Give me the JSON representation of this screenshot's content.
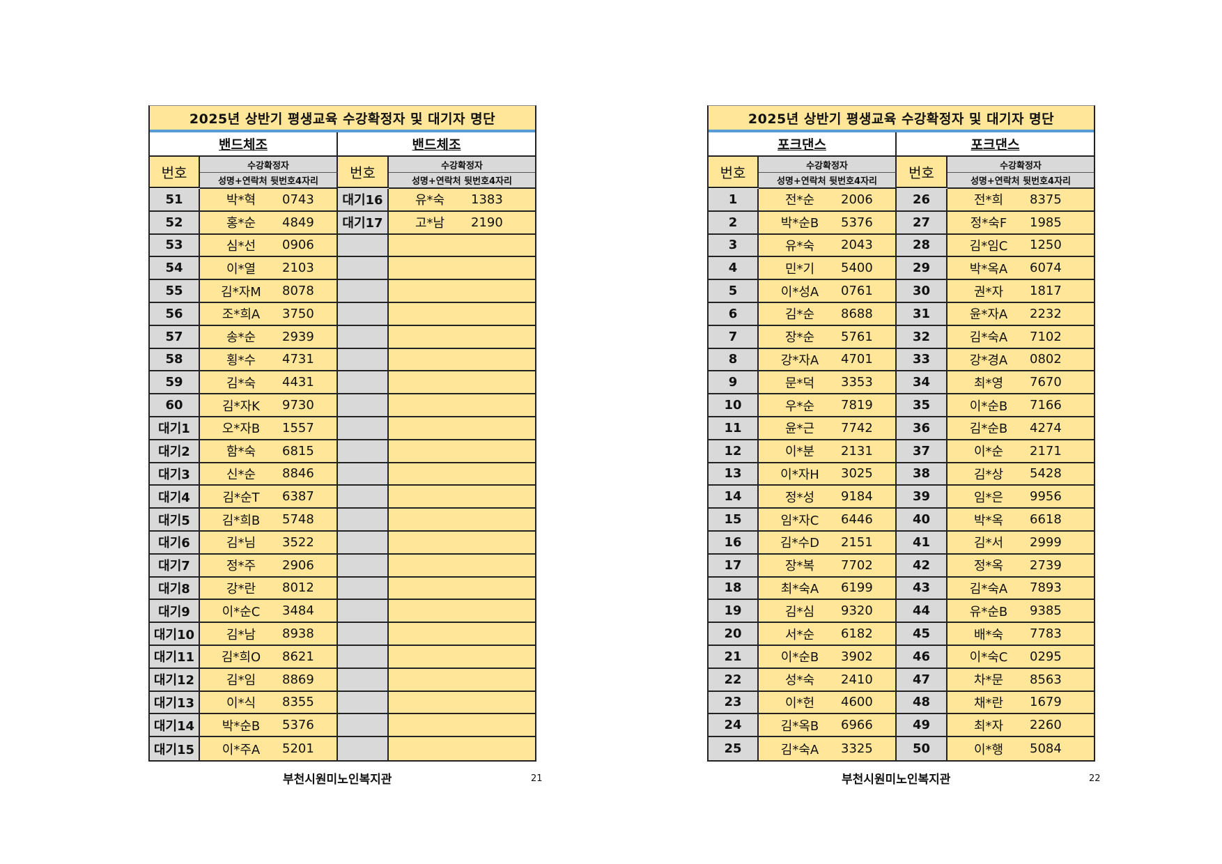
{
  "colors": {
    "header_yellow": "#FFE699",
    "number_gray": "#D9D9D9",
    "title_rule": "#5B9BD5"
  },
  "pages": [
    {
      "title": "2025년 상반기 평생교육 수강확정자 및 대기자 명단",
      "footer": "부천시원미노인복지관",
      "page_number": "21",
      "columns": [
        {
          "heading": "밴드체조",
          "no_label": "번호",
          "group_label": "수강확정자",
          "col_label": "성명+연락처 뒷번호4자리",
          "rows": [
            {
              "no": "51",
              "name": "박*혁",
              "phone": "0743"
            },
            {
              "no": "52",
              "name": "홍*순",
              "phone": "4849"
            },
            {
              "no": "53",
              "name": "심*선",
              "phone": "0906"
            },
            {
              "no": "54",
              "name": "이*열",
              "phone": "2103"
            },
            {
              "no": "55",
              "name": "김*자M",
              "phone": "8078"
            },
            {
              "no": "56",
              "name": "조*희A",
              "phone": "3750"
            },
            {
              "no": "57",
              "name": "송*순",
              "phone": "2939"
            },
            {
              "no": "58",
              "name": "횡*수",
              "phone": "4731"
            },
            {
              "no": "59",
              "name": "김*숙",
              "phone": "4431"
            },
            {
              "no": "60",
              "name": "김*자K",
              "phone": "9730"
            },
            {
              "no": "대기1",
              "name": "오*자B",
              "phone": "1557"
            },
            {
              "no": "대기2",
              "name": "함*숙",
              "phone": "6815"
            },
            {
              "no": "대기3",
              "name": "신*순",
              "phone": "8846"
            },
            {
              "no": "대기4",
              "name": "김*순T",
              "phone": "6387"
            },
            {
              "no": "대기5",
              "name": "김*희B",
              "phone": "5748"
            },
            {
              "no": "대기6",
              "name": "김*님",
              "phone": "3522"
            },
            {
              "no": "대기7",
              "name": "정*주",
              "phone": "2906"
            },
            {
              "no": "대기8",
              "name": "강*란",
              "phone": "8012"
            },
            {
              "no": "대기9",
              "name": "이*순C",
              "phone": "3484"
            },
            {
              "no": "대기10",
              "name": "김*남",
              "phone": "8938"
            },
            {
              "no": "대기11",
              "name": "김*희O",
              "phone": "8621"
            },
            {
              "no": "대기12",
              "name": "김*임",
              "phone": "8869"
            },
            {
              "no": "대기13",
              "name": "이*식",
              "phone": "8355"
            },
            {
              "no": "대기14",
              "name": "박*순B",
              "phone": "5376"
            },
            {
              "no": "대기15",
              "name": "이*주A",
              "phone": "5201"
            }
          ]
        },
        {
          "heading": "밴드체조",
          "no_label": "번호",
          "group_label": "수강확정자",
          "col_label": "성명+연락처 뒷번호4자리",
          "rows": [
            {
              "no": "대기16",
              "name": "유*숙",
              "phone": "1383"
            },
            {
              "no": "대기17",
              "name": "고*남",
              "phone": "2190"
            },
            {
              "no": "",
              "name": "",
              "phone": ""
            },
            {
              "no": "",
              "name": "",
              "phone": ""
            },
            {
              "no": "",
              "name": "",
              "phone": ""
            },
            {
              "no": "",
              "name": "",
              "phone": ""
            },
            {
              "no": "",
              "name": "",
              "phone": ""
            },
            {
              "no": "",
              "name": "",
              "phone": ""
            },
            {
              "no": "",
              "name": "",
              "phone": ""
            },
            {
              "no": "",
              "name": "",
              "phone": ""
            },
            {
              "no": "",
              "name": "",
              "phone": ""
            },
            {
              "no": "",
              "name": "",
              "phone": ""
            },
            {
              "no": "",
              "name": "",
              "phone": ""
            },
            {
              "no": "",
              "name": "",
              "phone": ""
            },
            {
              "no": "",
              "name": "",
              "phone": ""
            },
            {
              "no": "",
              "name": "",
              "phone": ""
            },
            {
              "no": "",
              "name": "",
              "phone": ""
            },
            {
              "no": "",
              "name": "",
              "phone": ""
            },
            {
              "no": "",
              "name": "",
              "phone": ""
            },
            {
              "no": "",
              "name": "",
              "phone": ""
            },
            {
              "no": "",
              "name": "",
              "phone": ""
            },
            {
              "no": "",
              "name": "",
              "phone": ""
            },
            {
              "no": "",
              "name": "",
              "phone": ""
            },
            {
              "no": "",
              "name": "",
              "phone": ""
            },
            {
              "no": "",
              "name": "",
              "phone": ""
            }
          ]
        }
      ]
    },
    {
      "title": "2025년 상반기 평생교육 수강확정자 및 대기자 명단",
      "footer": "부천시원미노인복지관",
      "page_number": "22",
      "columns": [
        {
          "heading": "포크댄스",
          "no_label": "번호",
          "group_label": "수강확정자",
          "col_label": "성명+연락처 뒷번호4자리",
          "rows": [
            {
              "no": "1",
              "name": "전*순",
              "phone": "2006"
            },
            {
              "no": "2",
              "name": "박*순B",
              "phone": "5376"
            },
            {
              "no": "3",
              "name": "유*숙",
              "phone": "2043"
            },
            {
              "no": "4",
              "name": "민*기",
              "phone": "5400"
            },
            {
              "no": "5",
              "name": "이*성A",
              "phone": "0761"
            },
            {
              "no": "6",
              "name": "김*순",
              "phone": "8688"
            },
            {
              "no": "7",
              "name": "장*순",
              "phone": "5761"
            },
            {
              "no": "8",
              "name": "강*자A",
              "phone": "4701"
            },
            {
              "no": "9",
              "name": "문*덕",
              "phone": "3353"
            },
            {
              "no": "10",
              "name": "우*순",
              "phone": "7819"
            },
            {
              "no": "11",
              "name": "윤*근",
              "phone": "7742"
            },
            {
              "no": "12",
              "name": "이*분",
              "phone": "2131"
            },
            {
              "no": "13",
              "name": "이*자H",
              "phone": "3025"
            },
            {
              "no": "14",
              "name": "정*성",
              "phone": "9184"
            },
            {
              "no": "15",
              "name": "임*자C",
              "phone": "6446"
            },
            {
              "no": "16",
              "name": "김*수D",
              "phone": "2151"
            },
            {
              "no": "17",
              "name": "장*복",
              "phone": "7702"
            },
            {
              "no": "18",
              "name": "최*숙A",
              "phone": "6199"
            },
            {
              "no": "19",
              "name": "김*심",
              "phone": "9320"
            },
            {
              "no": "20",
              "name": "서*순",
              "phone": "6182"
            },
            {
              "no": "21",
              "name": "이*순B",
              "phone": "3902"
            },
            {
              "no": "22",
              "name": "성*숙",
              "phone": "2410"
            },
            {
              "no": "23",
              "name": "이*헌",
              "phone": "4600"
            },
            {
              "no": "24",
              "name": "김*옥B",
              "phone": "6966"
            },
            {
              "no": "25",
              "name": "김*숙A",
              "phone": "3325"
            }
          ]
        },
        {
          "heading": "포크댄스",
          "no_label": "번호",
          "group_label": "수강확정자",
          "col_label": "성명+연락처 뒷번호4자리",
          "rows": [
            {
              "no": "26",
              "name": "전*희",
              "phone": "8375"
            },
            {
              "no": "27",
              "name": "정*숙F",
              "phone": "1985"
            },
            {
              "no": "28",
              "name": "김*임C",
              "phone": "1250"
            },
            {
              "no": "29",
              "name": "박*옥A",
              "phone": "6074"
            },
            {
              "no": "30",
              "name": "권*자",
              "phone": "1817"
            },
            {
              "no": "31",
              "name": "윤*자A",
              "phone": "2232"
            },
            {
              "no": "32",
              "name": "김*숙A",
              "phone": "7102"
            },
            {
              "no": "33",
              "name": "강*경A",
              "phone": "0802"
            },
            {
              "no": "34",
              "name": "최*영",
              "phone": "7670"
            },
            {
              "no": "35",
              "name": "이*순B",
              "phone": "7166"
            },
            {
              "no": "36",
              "name": "김*순B",
              "phone": "4274"
            },
            {
              "no": "37",
              "name": "이*순",
              "phone": "2171"
            },
            {
              "no": "38",
              "name": "김*상",
              "phone": "5428"
            },
            {
              "no": "39",
              "name": "임*은",
              "phone": "9956"
            },
            {
              "no": "40",
              "name": "박*옥",
              "phone": "6618"
            },
            {
              "no": "41",
              "name": "김*서",
              "phone": "2999"
            },
            {
              "no": "42",
              "name": "정*옥",
              "phone": "2739"
            },
            {
              "no": "43",
              "name": "김*숙A",
              "phone": "7893"
            },
            {
              "no": "44",
              "name": "유*순B",
              "phone": "9385"
            },
            {
              "no": "45",
              "name": "배*숙",
              "phone": "7783"
            },
            {
              "no": "46",
              "name": "이*숙C",
              "phone": "0295"
            },
            {
              "no": "47",
              "name": "차*문",
              "phone": "8563"
            },
            {
              "no": "48",
              "name": "채*란",
              "phone": "1679"
            },
            {
              "no": "49",
              "name": "최*자",
              "phone": "2260"
            },
            {
              "no": "50",
              "name": "이*행",
              "phone": "5084"
            }
          ]
        }
      ]
    }
  ]
}
